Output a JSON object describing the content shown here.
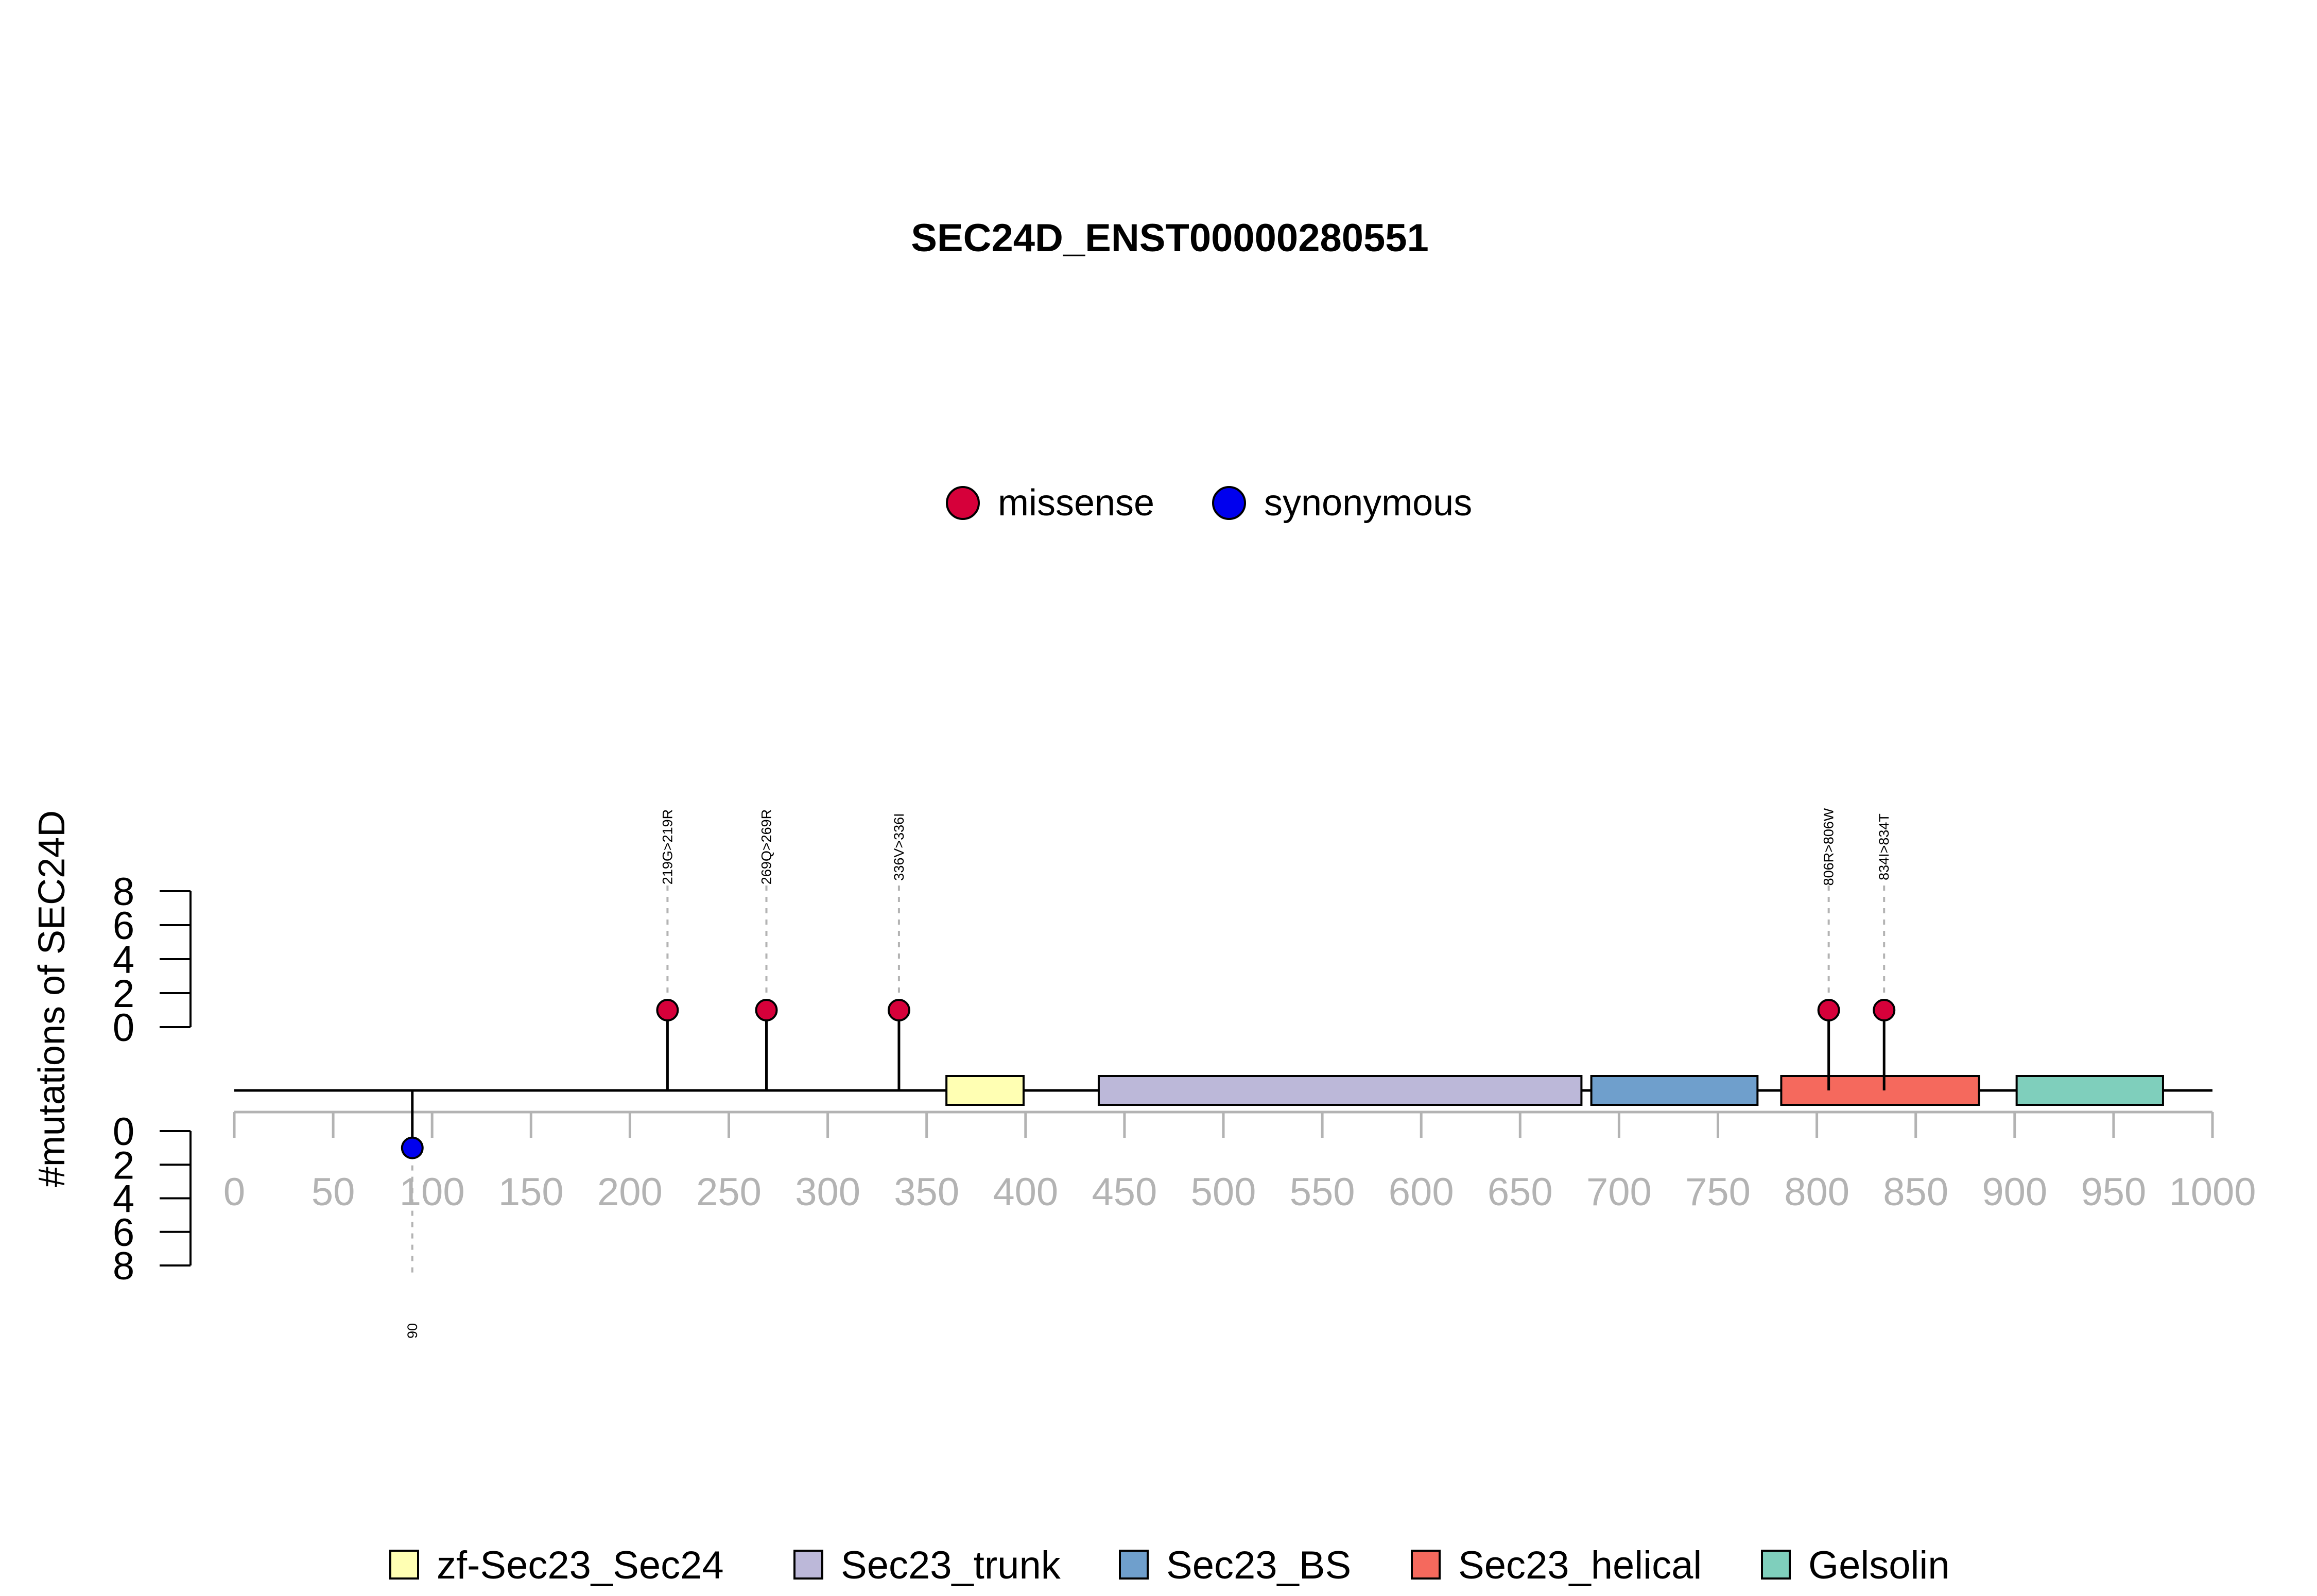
{
  "chart_data": {
    "type": "lollipop",
    "title": "SEC24D_ENST00000280551",
    "ylabel": "#mutations of SEC24D",
    "xlim": [
      0,
      1000
    ],
    "x_ticks": [
      0,
      50,
      100,
      150,
      200,
      250,
      300,
      350,
      400,
      450,
      500,
      550,
      600,
      650,
      700,
      750,
      800,
      850,
      900,
      950,
      1000
    ],
    "y_ticks_upper": [
      0,
      2,
      4,
      6,
      8
    ],
    "y_ticks_lower": [
      0,
      2,
      4,
      6,
      8
    ],
    "legend_top": [
      {
        "name": "missense",
        "color": "#d6003a"
      },
      {
        "name": "synonymous",
        "color": "#0000ee"
      }
    ],
    "mutations": [
      {
        "position": 219,
        "count": 1,
        "type": "missense",
        "label": "219G>219R",
        "side": "up"
      },
      {
        "position": 269,
        "count": 1,
        "type": "missense",
        "label": "269Q>269R",
        "side": "up"
      },
      {
        "position": 336,
        "count": 1,
        "type": "missense",
        "label": "336V>336I",
        "side": "up"
      },
      {
        "position": 806,
        "count": 1,
        "type": "missense",
        "label": "806R>806W",
        "side": "up"
      },
      {
        "position": 834,
        "count": 1,
        "type": "missense",
        "label": "834I>834T",
        "side": "up"
      },
      {
        "position": 90,
        "count": 1,
        "type": "synonymous",
        "label": "90",
        "side": "down"
      }
    ],
    "protein_length": 1000,
    "domains": [
      {
        "name": "zf-Sec23_Sec24",
        "start": 360,
        "end": 399,
        "color": "#ffffb3"
      },
      {
        "name": "Sec23_trunk",
        "start": 437,
        "end": 681,
        "color": "#bcb8d9"
      },
      {
        "name": "Sec23_BS",
        "start": 686,
        "end": 770,
        "color": "#6f9fcc"
      },
      {
        "name": "Sec23_helical",
        "start": 782,
        "end": 882,
        "color": "#f5695d"
      },
      {
        "name": "Gelsolin",
        "start": 901,
        "end": 975,
        "color": "#7fcfbc"
      }
    ],
    "grid": false,
    "legend_position": "top-center"
  }
}
